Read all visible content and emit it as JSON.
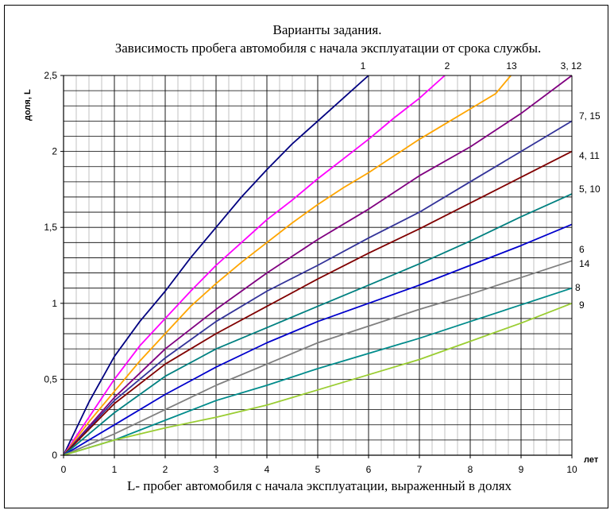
{
  "chart_data": {
    "type": "line",
    "title_line1": "Варианты задания.",
    "title_line2": "Зависимость пробега автомобиля с начала эксплуатации от срока службы.",
    "xlabel": "L- пробег автомобиля с начала эксплуатации, выраженный в долях",
    "x_unit": "лет",
    "ylabel": "доля, L",
    "xlim": [
      0,
      10
    ],
    "ylim": [
      0,
      2.5
    ],
    "x_ticks": [
      "0",
      "1",
      "2",
      "3",
      "4",
      "5",
      "6",
      "7",
      "8",
      "9",
      "10"
    ],
    "y_ticks": [
      "0",
      "0,5",
      "1",
      "1,5",
      "2",
      "2,5"
    ],
    "grid": true,
    "series": [
      {
        "label": "1",
        "color": "#000080",
        "points": [
          [
            0,
            0
          ],
          [
            0.5,
            0.35
          ],
          [
            1,
            0.65
          ],
          [
            1.5,
            0.88
          ],
          [
            2,
            1.08
          ],
          [
            2.5,
            1.3
          ],
          [
            3,
            1.5
          ],
          [
            3.5,
            1.7
          ],
          [
            4,
            1.88
          ],
          [
            4.5,
            2.05
          ],
          [
            5,
            2.2
          ],
          [
            5.5,
            2.35
          ],
          [
            6,
            2.5
          ]
        ]
      },
      {
        "label": "2",
        "color": "#ff00ff",
        "points": [
          [
            0,
            0
          ],
          [
            0.5,
            0.25
          ],
          [
            1,
            0.5
          ],
          [
            1.5,
            0.72
          ],
          [
            2,
            0.9
          ],
          [
            2.5,
            1.08
          ],
          [
            3,
            1.25
          ],
          [
            3.5,
            1.4
          ],
          [
            4,
            1.55
          ],
          [
            4.5,
            1.68
          ],
          [
            5,
            1.82
          ],
          [
            5.5,
            1.95
          ],
          [
            6,
            2.08
          ],
          [
            6.5,
            2.22
          ],
          [
            7,
            2.35
          ],
          [
            7.5,
            2.5
          ]
        ]
      },
      {
        "label": "13",
        "color": "#ffa500",
        "points": [
          [
            0,
            0
          ],
          [
            0.5,
            0.22
          ],
          [
            1,
            0.42
          ],
          [
            1.5,
            0.62
          ],
          [
            2,
            0.8
          ],
          [
            2.5,
            0.98
          ],
          [
            3,
            1.13
          ],
          [
            3.5,
            1.27
          ],
          [
            4,
            1.4
          ],
          [
            4.5,
            1.53
          ],
          [
            5,
            1.65
          ],
          [
            5.5,
            1.76
          ],
          [
            6,
            1.86
          ],
          [
            6.5,
            1.97
          ],
          [
            7,
            2.08
          ],
          [
            7.5,
            2.18
          ],
          [
            8,
            2.28
          ],
          [
            8.5,
            2.38
          ],
          [
            8.8,
            2.5
          ]
        ]
      },
      {
        "label": "3, 12",
        "color": "#800080",
        "points": [
          [
            0,
            0
          ],
          [
            1,
            0.38
          ],
          [
            2,
            0.7
          ],
          [
            3,
            0.96
          ],
          [
            4,
            1.2
          ],
          [
            5,
            1.42
          ],
          [
            6,
            1.62
          ],
          [
            7,
            1.84
          ],
          [
            8,
            2.03
          ],
          [
            9,
            2.25
          ],
          [
            10,
            2.5
          ]
        ]
      },
      {
        "label": "7, 15",
        "color": "#333399",
        "points": [
          [
            0,
            0
          ],
          [
            1,
            0.36
          ],
          [
            2,
            0.64
          ],
          [
            3,
            0.88
          ],
          [
            4,
            1.08
          ],
          [
            5,
            1.25
          ],
          [
            6,
            1.43
          ],
          [
            7,
            1.6
          ],
          [
            8,
            1.8
          ],
          [
            9,
            2.0
          ],
          [
            10,
            2.2
          ]
        ]
      },
      {
        "label": "4, 11",
        "color": "#800000",
        "points": [
          [
            0,
            0
          ],
          [
            1,
            0.34
          ],
          [
            2,
            0.6
          ],
          [
            3,
            0.8
          ],
          [
            4,
            0.98
          ],
          [
            5,
            1.16
          ],
          [
            6,
            1.33
          ],
          [
            7,
            1.49
          ],
          [
            8,
            1.66
          ],
          [
            9,
            1.83
          ],
          [
            10,
            2.0
          ]
        ]
      },
      {
        "label": "5, 10",
        "color": "#008080",
        "points": [
          [
            0,
            0
          ],
          [
            1,
            0.28
          ],
          [
            2,
            0.52
          ],
          [
            3,
            0.7
          ],
          [
            4,
            0.84
          ],
          [
            5,
            0.98
          ],
          [
            6,
            1.12
          ],
          [
            7,
            1.26
          ],
          [
            8,
            1.41
          ],
          [
            9,
            1.57
          ],
          [
            10,
            1.72
          ]
        ]
      },
      {
        "label": "6",
        "color": "#0000cc",
        "points": [
          [
            0,
            0
          ],
          [
            1,
            0.2
          ],
          [
            2,
            0.4
          ],
          [
            3,
            0.58
          ],
          [
            4,
            0.74
          ],
          [
            5,
            0.88
          ],
          [
            6,
            1.0
          ],
          [
            7,
            1.12
          ],
          [
            8,
            1.25
          ],
          [
            9,
            1.38
          ],
          [
            10,
            1.52
          ]
        ]
      },
      {
        "label": "14",
        "color": "#808080",
        "points": [
          [
            0,
            0
          ],
          [
            1,
            0.14
          ],
          [
            2,
            0.3
          ],
          [
            3,
            0.46
          ],
          [
            4,
            0.6
          ],
          [
            5,
            0.74
          ],
          [
            6,
            0.85
          ],
          [
            7,
            0.96
          ],
          [
            8,
            1.06
          ],
          [
            9,
            1.17
          ],
          [
            10,
            1.28
          ]
        ]
      },
      {
        "label": "8",
        "color": "#008b8b",
        "points": [
          [
            0,
            0
          ],
          [
            1,
            0.1
          ],
          [
            2,
            0.23
          ],
          [
            3,
            0.36
          ],
          [
            4,
            0.46
          ],
          [
            5,
            0.57
          ],
          [
            6,
            0.67
          ],
          [
            7,
            0.77
          ],
          [
            8,
            0.88
          ],
          [
            9,
            0.99
          ],
          [
            10,
            1.1
          ]
        ]
      },
      {
        "label": "9",
        "color": "#9acd32",
        "points": [
          [
            0,
            0
          ],
          [
            1,
            0.1
          ],
          [
            2,
            0.18
          ],
          [
            3,
            0.25
          ],
          [
            4,
            0.33
          ],
          [
            5,
            0.43
          ],
          [
            6,
            0.53
          ],
          [
            7,
            0.63
          ],
          [
            8,
            0.75
          ],
          [
            9,
            0.87
          ],
          [
            10,
            1.0
          ]
        ]
      }
    ]
  }
}
